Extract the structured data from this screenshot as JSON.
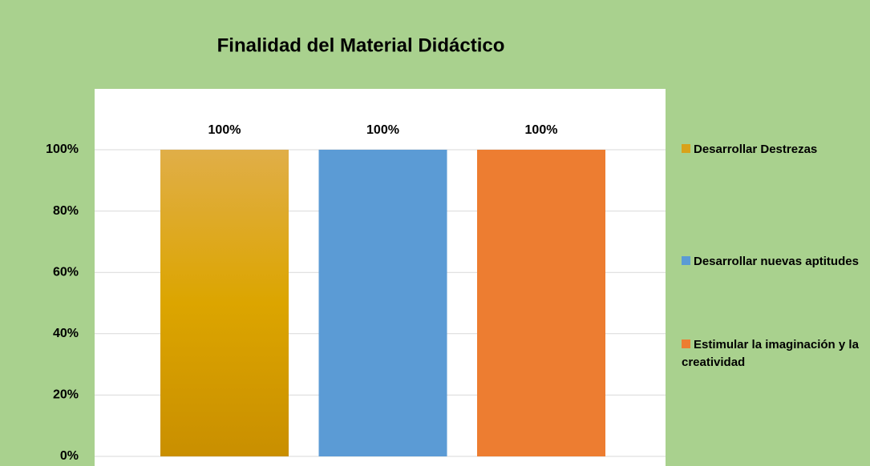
{
  "chart_data": {
    "type": "bar",
    "title": "Finalidad del Material Didáctico",
    "series": [
      {
        "name": "Desarrollar Destrezas",
        "color": "#d9a21a",
        "values": [
          100
        ],
        "value_labels": [
          "100%"
        ]
      },
      {
        "name": "Desarrollar nuevas aptitudes",
        "color": "#5b9bd5",
        "values": [
          100
        ],
        "value_labels": [
          "100%"
        ]
      },
      {
        "name": "Estimular la imaginación y la creatividad",
        "color": "#ed7d31",
        "values": [
          100
        ],
        "value_labels": [
          "100%"
        ]
      }
    ],
    "ylim": [
      0,
      120
    ],
    "yticks": [
      {
        "value": 0,
        "label": "0%"
      },
      {
        "value": 20,
        "label": "20%"
      },
      {
        "value": 40,
        "label": "40%"
      },
      {
        "value": 60,
        "label": "60%"
      },
      {
        "value": 80,
        "label": "80%"
      },
      {
        "value": 100,
        "label": "100%"
      }
    ],
    "grid": true,
    "legend": "right"
  }
}
